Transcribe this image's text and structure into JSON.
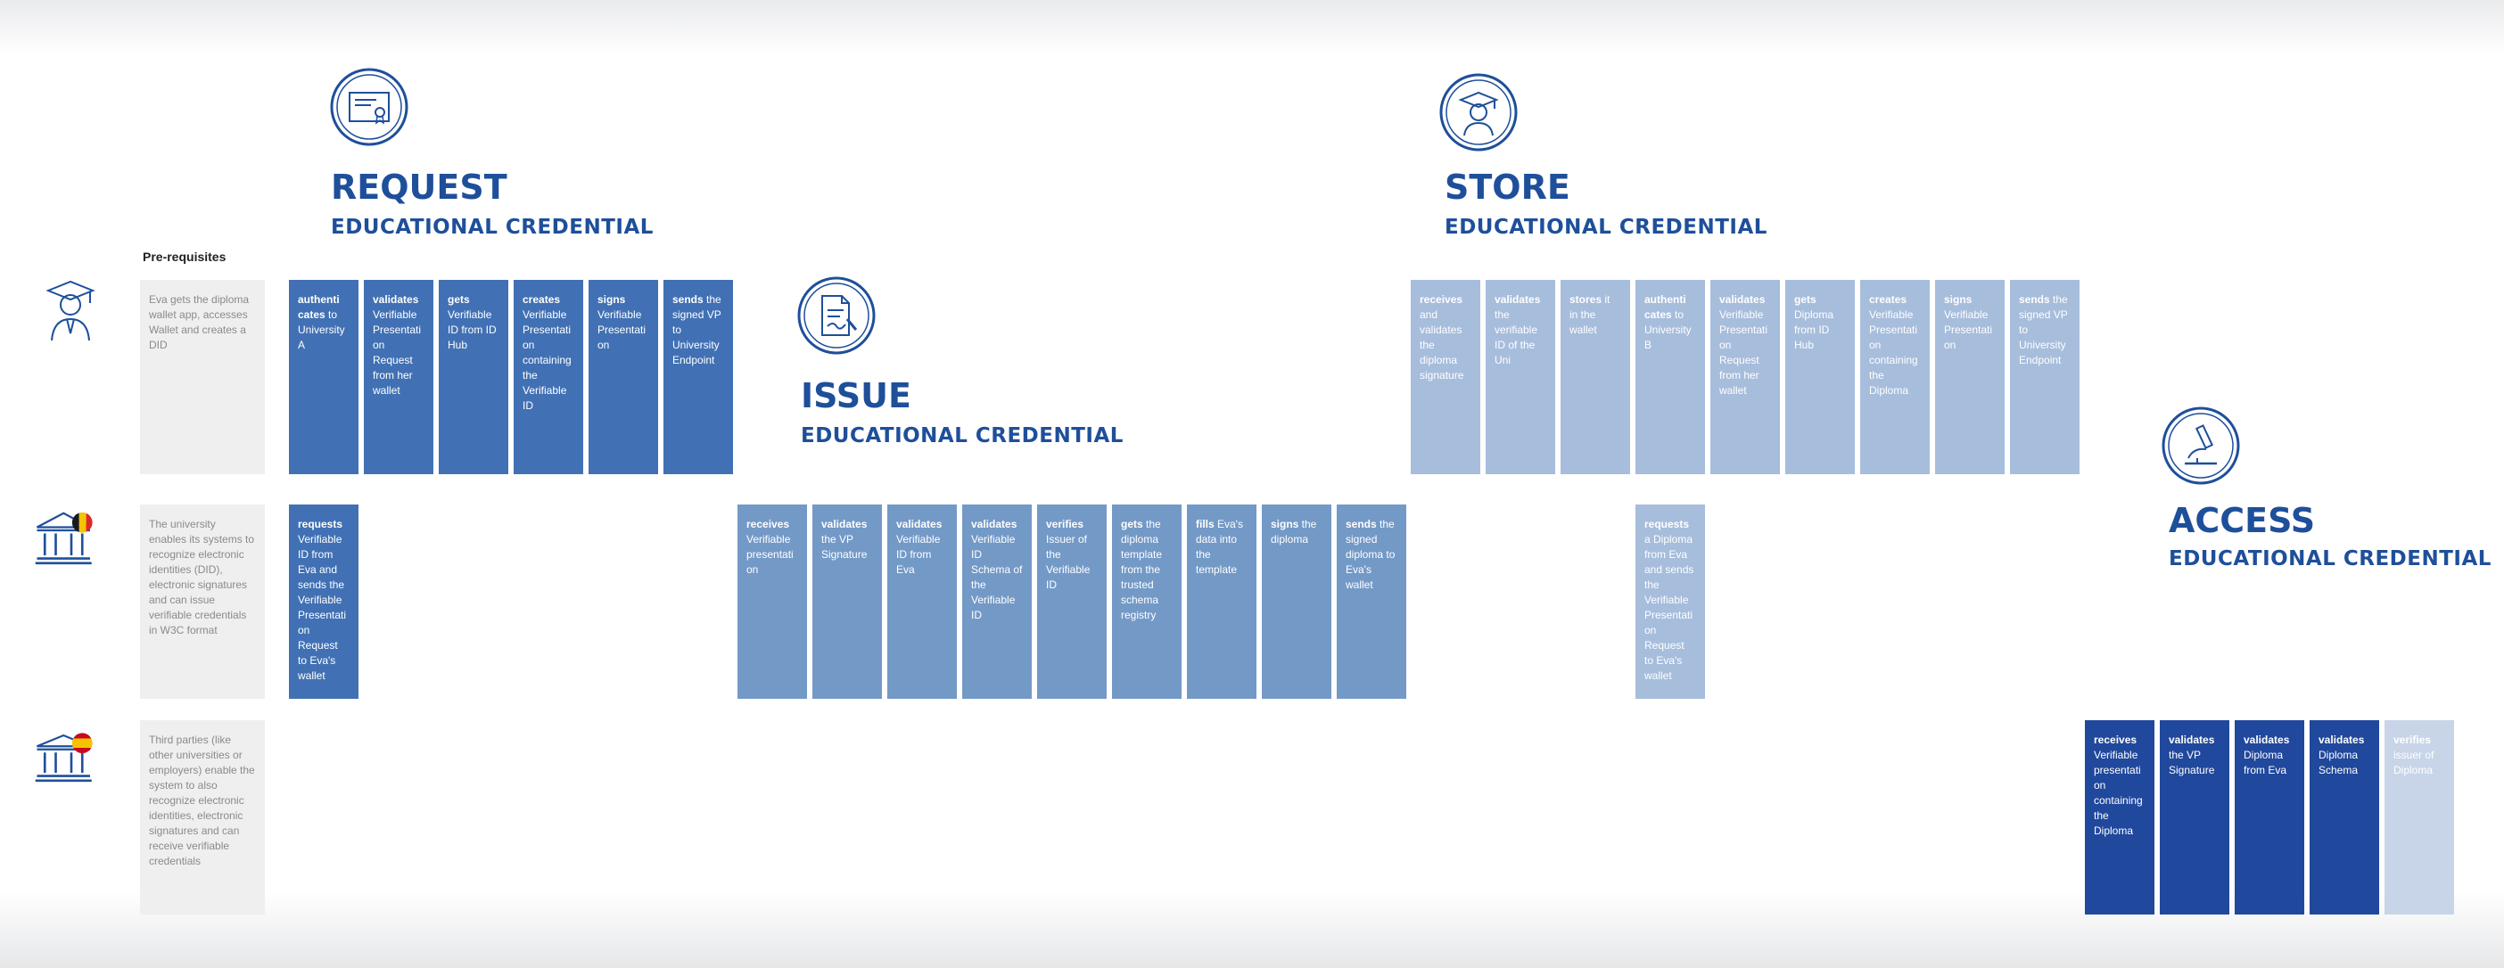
{
  "stages": {
    "request": {
      "title": "REQUEST",
      "subtitle": "EDUCATIONAL CREDENTIAL",
      "icon": "certificate-icon"
    },
    "issue": {
      "title": "ISSUE",
      "subtitle": "EDUCATIONAL CREDENTIAL",
      "icon": "document-sign-icon"
    },
    "store": {
      "title": "STORE",
      "subtitle": "EDUCATIONAL CREDENTIAL",
      "icon": "graduate-icon"
    },
    "access": {
      "title": "ACCESS",
      "subtitle": "EDUCATIONAL CREDENTIAL",
      "icon": "microscope-icon"
    }
  },
  "prerequisites_heading": "Pre-requisites",
  "actors": [
    {
      "icon": "student-graduate-icon",
      "prerequisite": "Eva gets the diploma wallet app, accesses Wallet and creates a DID"
    },
    {
      "icon": "university-belgium-icon",
      "prerequisite": "The university enables its systems to recognize electronic identities (DID), electronic signatures and can issue verifiable credentials in W3C format"
    },
    {
      "icon": "institution-spain-icon",
      "prerequisite": "Third parties (like other universities or employers) enable the system to also recognize electronic identities, electronic signatures and can receive verifiable credentials"
    }
  ],
  "steps": {
    "eva_request": [
      {
        "verb": "authenti cates",
        "rest": " to University A"
      },
      {
        "verb": "validates",
        "rest": " Verifiable Presentati on Request from her wallet"
      },
      {
        "verb": "gets",
        "rest": " Verifiable ID from ID Hub"
      },
      {
        "verb": "creates",
        "rest": " Verifiable Presentati on containing the Verifiable ID"
      },
      {
        "verb": "signs",
        "rest": " Verifiable Presentati on"
      },
      {
        "verb": "sends",
        "rest": " the signed VP to University Endpoint"
      }
    ],
    "uni_request": [
      {
        "verb": "requests",
        "rest": " Verifiable ID from Eva and sends the Verifiable Presentati on Request to Eva's wallet"
      }
    ],
    "uni_issue": [
      {
        "verb": "receives",
        "rest": " Verifiable presentati on"
      },
      {
        "verb": "validates",
        "rest": " the VP Signature"
      },
      {
        "verb": "validates",
        "rest": " Verifiable ID from Eva"
      },
      {
        "verb": "validates",
        "rest": " Verifiable ID Schema of the Verifiable ID"
      },
      {
        "verb": "verifies",
        "rest": " Issuer of the Verifiable ID"
      },
      {
        "verb": "gets",
        "rest": " the diploma template from the trusted schema registry"
      },
      {
        "verb": "fills",
        "rest": " Eva's data into the template"
      },
      {
        "verb": "signs",
        "rest": " the diploma"
      },
      {
        "verb": "sends",
        "rest": " the signed diploma to Eva's wallet"
      }
    ],
    "eva_store": [
      {
        "verb": "receives",
        "rest": " and validates the diploma signature"
      },
      {
        "verb": "validates",
        "rest": " the verifiable ID of the Uni"
      },
      {
        "verb": "stores",
        "rest": " it in the wallet"
      },
      {
        "verb": "authenti cates",
        "rest": " to University B"
      },
      {
        "verb": "validates",
        "rest": " Verifiable Presentati on Request from her wallet"
      },
      {
        "verb": "gets",
        "rest": " Diploma from ID Hub"
      },
      {
        "verb": "creates",
        "rest": " Verifiable Presentati on containing the Diploma"
      },
      {
        "verb": "signs",
        "rest": " Verifiable Presentati on"
      },
      {
        "verb": "sends",
        "rest": " the signed VP to University Endpoint"
      }
    ],
    "uni_store": [
      {
        "verb": "requests",
        "rest": " a Diploma from Eva and sends the Verifiable Presentati on Request to Eva's wallet"
      }
    ],
    "third_access": [
      {
        "verb": "receives",
        "rest": " Verifiable presentati on containing the Diploma"
      },
      {
        "verb": "validates",
        "rest": " the VP Signature"
      },
      {
        "verb": "validates",
        "rest": " Diploma from Eva"
      },
      {
        "verb": "validates",
        "rest": " Diploma Schema"
      },
      {
        "verb": "verifies",
        "rest": " issuer of Diploma"
      }
    ]
  },
  "colors": {
    "title_blue": "#1e4f9a",
    "request_step": "#4171b4",
    "issue_step": "#7399c7",
    "store_step": "#a7bddc",
    "access_step": "#20489c",
    "access_last_step": "#c8d5e8",
    "prerequisite_bg": "#efefef",
    "belgium": [
      "#1a1a1a",
      "#f5c400",
      "#e0272c"
    ],
    "spain": [
      "#c60b1e",
      "#f7c300"
    ]
  }
}
